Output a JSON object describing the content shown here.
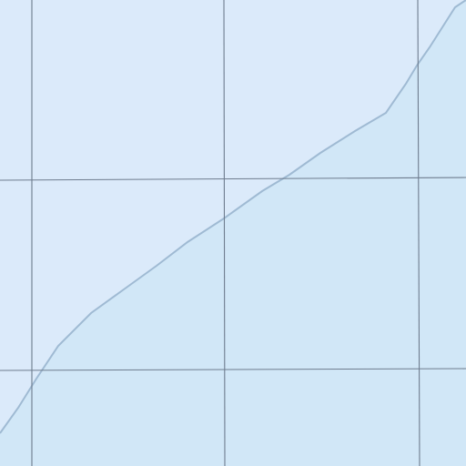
{
  "map": {
    "colors": {
      "region_a_fill": "#dbeafa",
      "region_b_fill": "#d1e7f7",
      "boundary_stroke": "#9fbad3",
      "grid_stroke": "#6e7c8e"
    },
    "layers": [
      "region-a",
      "region-b",
      "region-boundary",
      "graticule"
    ]
  }
}
